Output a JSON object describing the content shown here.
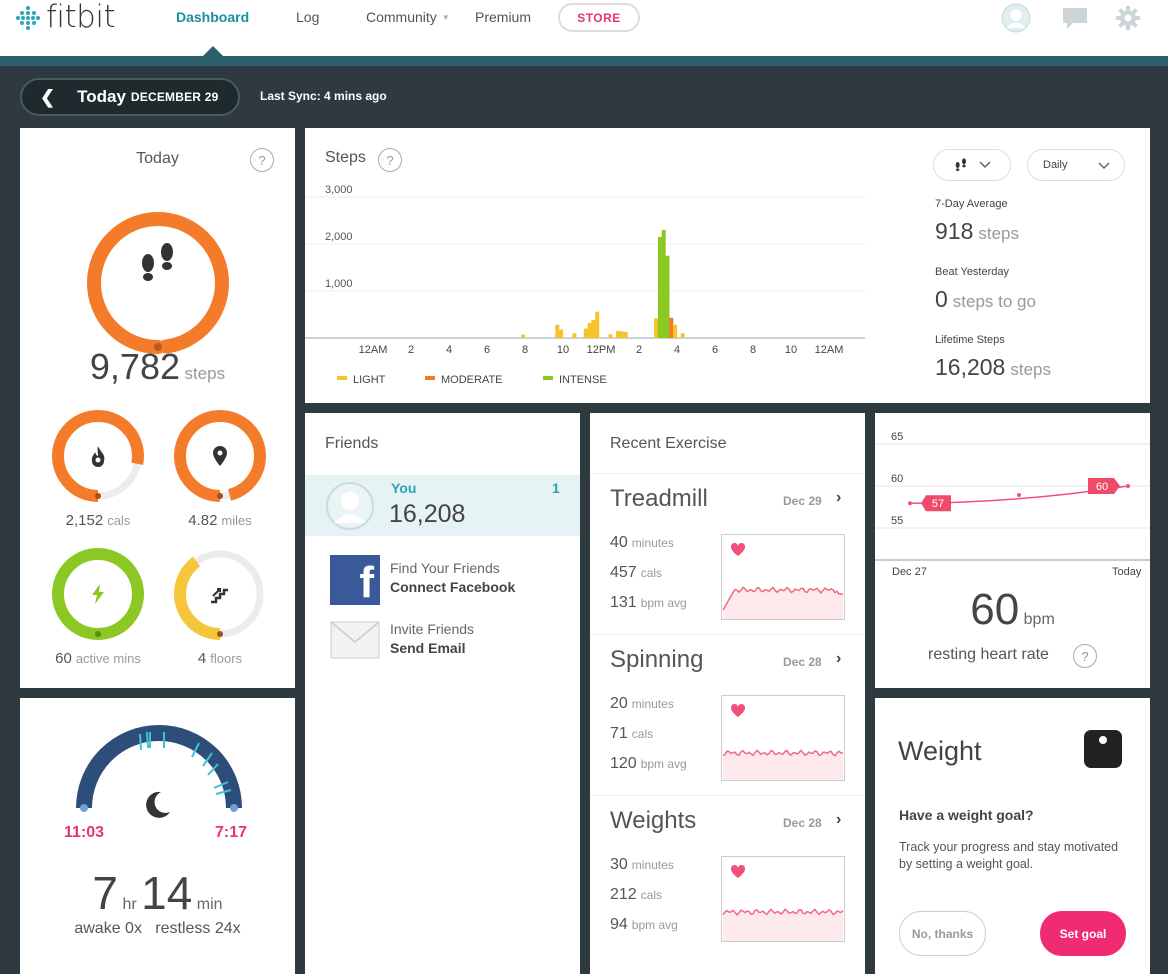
{
  "brand": {
    "logo_text": "fitbit"
  },
  "nav": {
    "dashboard": "Dashboard",
    "log": "Log",
    "community": "Community",
    "premium": "Premium",
    "store": "STORE"
  },
  "datebar": {
    "back_glyph": "❮",
    "today": "Today",
    "date": "DECEMBER 29",
    "last_sync": "Last Sync: 4 mins ago"
  },
  "today": {
    "title": "Today",
    "help": "?",
    "steps_value": "9,782",
    "steps_unit": "steps",
    "steps_progress": 0.98,
    "small": [
      {
        "value": "2,152",
        "unit": "cals",
        "progress": 0.78,
        "color": "#f47b2a",
        "icon": "flame-icon"
      },
      {
        "value": "4.82",
        "unit": "miles",
        "progress": 0.96,
        "color": "#f47b2a",
        "icon": "map-pin-icon"
      },
      {
        "value": "60",
        "unit": "active mins",
        "progress": 1.0,
        "color": "#8bc824",
        "icon": "lightning-icon"
      },
      {
        "value": "4",
        "unit": "floors",
        "progress": 0.4,
        "color": "#f6c63a",
        "icon": "stairs-icon"
      }
    ]
  },
  "sleep": {
    "start": "11:03",
    "end": "7:17",
    "hours": "7",
    "hr_unit": "hr",
    "minutes": "14",
    "min_unit": "min",
    "awake": "awake 0x",
    "restless": "restless 24x",
    "icon": "moon-icon"
  },
  "steps": {
    "title": "Steps",
    "help": "?",
    "type_select_icon": "footsteps-icon",
    "period_select": "Daily",
    "stats": [
      {
        "label": "7-Day Average",
        "value": "918",
        "unit": "steps"
      },
      {
        "label": "Beat Yesterday",
        "value": "0",
        "unit": "steps to go"
      },
      {
        "label": "Lifetime Steps",
        "value": "16,208",
        "unit": "steps"
      }
    ]
  },
  "chart_data": {
    "type": "bar",
    "title": "Steps",
    "ylim": [
      0,
      3000
    ],
    "yticks": [
      "1,000",
      "2,000",
      "3,000"
    ],
    "xticks": [
      "12AM",
      "2",
      "4",
      "6",
      "8",
      "10",
      "12PM",
      "2",
      "4",
      "6",
      "8",
      "10",
      "12AM"
    ],
    "legend": [
      "LIGHT",
      "MODERATE",
      "INTENSE"
    ],
    "colors": {
      "LIGHT": "#f6c32d",
      "MODERATE": "#f47b2a",
      "INTENSE": "#8bc824"
    },
    "bars": [
      {
        "hour": 7.9,
        "value": 70,
        "level": "LIGHT"
      },
      {
        "hour": 9.7,
        "value": 280,
        "level": "LIGHT"
      },
      {
        "hour": 9.9,
        "value": 180,
        "level": "LIGHT"
      },
      {
        "hour": 10.6,
        "value": 100,
        "level": "LIGHT"
      },
      {
        "hour": 11.2,
        "value": 200,
        "level": "LIGHT"
      },
      {
        "hour": 11.4,
        "value": 320,
        "level": "LIGHT"
      },
      {
        "hour": 11.6,
        "value": 380,
        "level": "LIGHT"
      },
      {
        "hour": 11.8,
        "value": 560,
        "level": "LIGHT"
      },
      {
        "hour": 12.5,
        "value": 80,
        "level": "LIGHT"
      },
      {
        "hour": 12.9,
        "value": 150,
        "level": "LIGHT"
      },
      {
        "hour": 13.1,
        "value": 140,
        "level": "LIGHT"
      },
      {
        "hour": 13.3,
        "value": 130,
        "level": "LIGHT"
      },
      {
        "hour": 14.9,
        "value": 420,
        "level": "LIGHT"
      },
      {
        "hour": 15.1,
        "value": 2150,
        "level": "INTENSE"
      },
      {
        "hour": 15.3,
        "value": 2300,
        "level": "INTENSE"
      },
      {
        "hour": 15.5,
        "value": 1750,
        "level": "INTENSE"
      },
      {
        "hour": 15.7,
        "value": 430,
        "level": "MODERATE"
      },
      {
        "hour": 15.9,
        "value": 280,
        "level": "LIGHT"
      },
      {
        "hour": 16.3,
        "value": 100,
        "level": "LIGHT"
      }
    ]
  },
  "friends": {
    "title": "Friends",
    "me": {
      "name": "You",
      "rank": "1",
      "steps": "16,208"
    },
    "actions": [
      {
        "line1": "Find Your Friends",
        "line2": "Connect Facebook",
        "icon": "facebook-icon"
      },
      {
        "line1": "Invite Friends",
        "line2": "Send Email",
        "icon": "envelope-icon"
      }
    ]
  },
  "exercise": {
    "title": "Recent Exercise",
    "items": [
      {
        "name": "Treadmill",
        "date": "Dec 29",
        "minutes": "40",
        "min_unit": "minutes",
        "cals": "457",
        "cal_unit": "cals",
        "bpm": "131",
        "bpm_unit": "bpm avg"
      },
      {
        "name": "Spinning",
        "date": "Dec 28",
        "minutes": "20",
        "min_unit": "minutes",
        "cals": "71",
        "cal_unit": "cals",
        "bpm": "120",
        "bpm_unit": "bpm avg"
      },
      {
        "name": "Weights",
        "date": "Dec 28",
        "minutes": "30",
        "min_unit": "minutes",
        "cals": "212",
        "cal_unit": "cals",
        "bpm": "94",
        "bpm_unit": "bpm avg"
      }
    ]
  },
  "heart": {
    "yticks": [
      "65",
      "60",
      "55"
    ],
    "start_label": "Dec 27",
    "end_label": "Today",
    "points": [
      57,
      58,
      60
    ],
    "first_badge": "57",
    "last_badge": "60",
    "value": "60",
    "unit": "bpm",
    "label": "resting heart rate",
    "help": "?"
  },
  "weight": {
    "title": "Weight",
    "question": "Have a weight goal?",
    "description": "Track your progress and stay motivated by setting a weight goal.",
    "no_button": "No, thanks",
    "set_button": "Set goal",
    "icon": "scale-icon"
  }
}
